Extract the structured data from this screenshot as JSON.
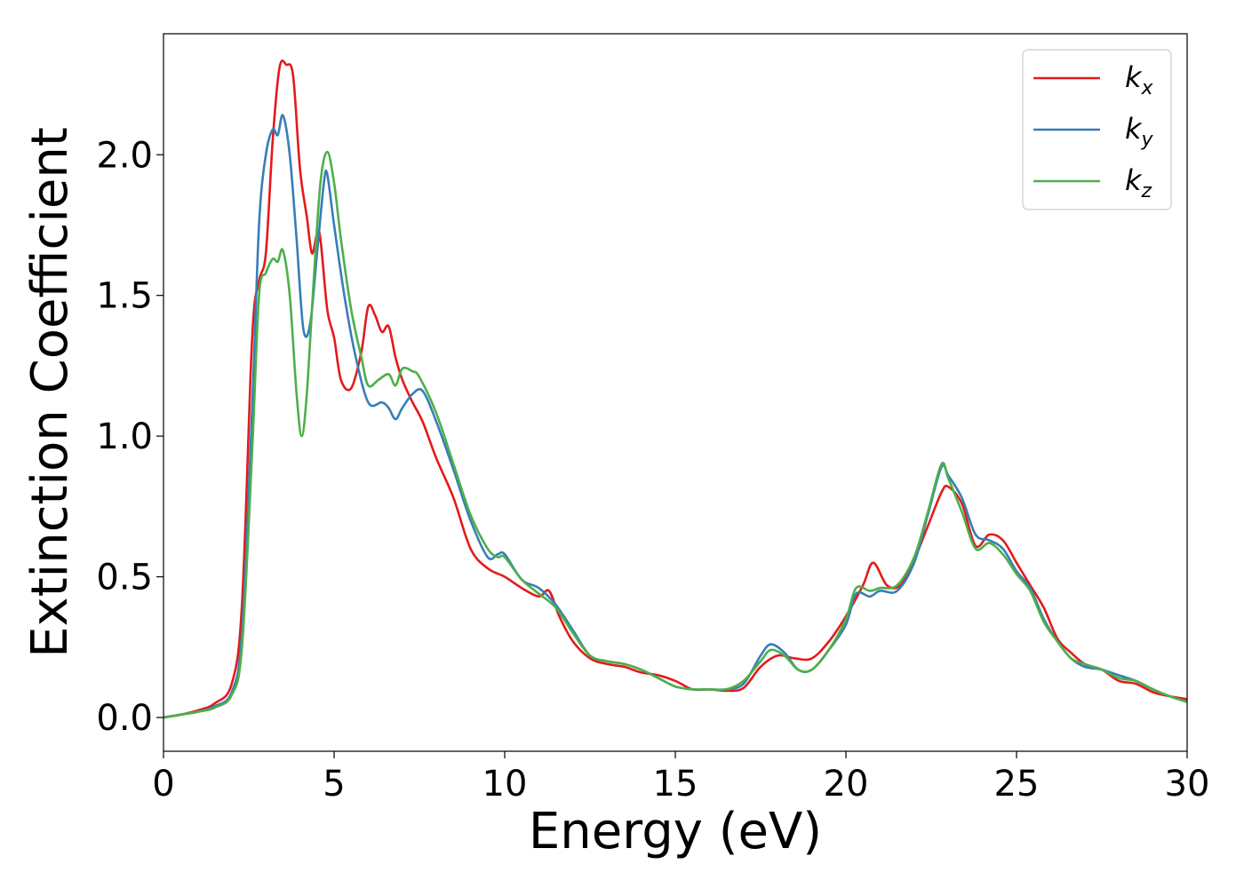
{
  "chart_data": {
    "type": "line",
    "xlabel": "Energy (eV)",
    "ylabel": "Extinction Coefficient",
    "xlim": [
      0,
      30
    ],
    "ylim": [
      -0.12,
      2.43
    ],
    "xticks": [
      0,
      5,
      10,
      15,
      20,
      25,
      30
    ],
    "xtick_labels": [
      "0",
      "5",
      "10",
      "15",
      "20",
      "25",
      "30"
    ],
    "yticks": [
      0.0,
      0.5,
      1.0,
      1.5,
      2.0
    ],
    "ytick_labels": [
      "0.0",
      "0.5",
      "1.0",
      "1.5",
      "2.0"
    ],
    "grid": false,
    "legend_position": "top-right",
    "series": [
      {
        "name": "k_x",
        "label_main": "k",
        "label_sub": "x",
        "color": "#e41a1c",
        "points": [
          [
            0,
            0
          ],
          [
            0.5,
            0.01
          ],
          [
            1,
            0.025
          ],
          [
            1.5,
            0.05
          ],
          [
            2,
            0.12
          ],
          [
            2.3,
            0.4
          ],
          [
            2.6,
            1.35
          ],
          [
            2.8,
            1.55
          ],
          [
            3.0,
            1.65
          ],
          [
            3.2,
            2.05
          ],
          [
            3.4,
            2.31
          ],
          [
            3.6,
            2.32
          ],
          [
            3.8,
            2.28
          ],
          [
            4.0,
            1.95
          ],
          [
            4.2,
            1.78
          ],
          [
            4.35,
            1.65
          ],
          [
            4.5,
            1.72
          ],
          [
            4.6,
            1.7
          ],
          [
            4.8,
            1.45
          ],
          [
            5.0,
            1.35
          ],
          [
            5.2,
            1.2
          ],
          [
            5.5,
            1.17
          ],
          [
            5.8,
            1.3
          ],
          [
            6.0,
            1.46
          ],
          [
            6.2,
            1.43
          ],
          [
            6.4,
            1.37
          ],
          [
            6.6,
            1.39
          ],
          [
            6.8,
            1.28
          ],
          [
            7.0,
            1.2
          ],
          [
            7.3,
            1.12
          ],
          [
            7.6,
            1.05
          ],
          [
            8.0,
            0.92
          ],
          [
            8.5,
            0.78
          ],
          [
            9.0,
            0.6
          ],
          [
            9.5,
            0.53
          ],
          [
            10,
            0.5
          ],
          [
            10.5,
            0.46
          ],
          [
            11.0,
            0.43
          ],
          [
            11.3,
            0.45
          ],
          [
            11.6,
            0.36
          ],
          [
            12.0,
            0.27
          ],
          [
            12.5,
            0.21
          ],
          [
            13,
            0.19
          ],
          [
            13.5,
            0.18
          ],
          [
            14,
            0.16
          ],
          [
            14.5,
            0.15
          ],
          [
            15,
            0.13
          ],
          [
            15.5,
            0.1
          ],
          [
            16,
            0.1
          ],
          [
            16.5,
            0.095
          ],
          [
            17,
            0.105
          ],
          [
            17.5,
            0.18
          ],
          [
            18,
            0.22
          ],
          [
            18.5,
            0.21
          ],
          [
            19,
            0.21
          ],
          [
            19.5,
            0.27
          ],
          [
            20,
            0.36
          ],
          [
            20.5,
            0.47
          ],
          [
            20.8,
            0.55
          ],
          [
            21.2,
            0.47
          ],
          [
            21.6,
            0.47
          ],
          [
            22,
            0.56
          ],
          [
            22.4,
            0.68
          ],
          [
            22.8,
            0.8
          ],
          [
            23.0,
            0.82
          ],
          [
            23.4,
            0.76
          ],
          [
            23.8,
            0.61
          ],
          [
            24.2,
            0.65
          ],
          [
            24.6,
            0.63
          ],
          [
            25,
            0.55
          ],
          [
            25.4,
            0.47
          ],
          [
            25.8,
            0.39
          ],
          [
            26.2,
            0.28
          ],
          [
            26.6,
            0.23
          ],
          [
            27,
            0.19
          ],
          [
            27.5,
            0.17
          ],
          [
            28,
            0.13
          ],
          [
            28.5,
            0.12
          ],
          [
            29,
            0.09
          ],
          [
            29.5,
            0.075
          ],
          [
            30,
            0.065
          ]
        ]
      },
      {
        "name": "k_y",
        "label_main": "k",
        "label_sub": "y",
        "color": "#377eb8",
        "points": [
          [
            0,
            0
          ],
          [
            0.5,
            0.01
          ],
          [
            1,
            0.02
          ],
          [
            1.5,
            0.04
          ],
          [
            2,
            0.09
          ],
          [
            2.3,
            0.3
          ],
          [
            2.6,
            1.1
          ],
          [
            2.8,
            1.75
          ],
          [
            3.0,
            2.0
          ],
          [
            3.2,
            2.09
          ],
          [
            3.35,
            2.07
          ],
          [
            3.5,
            2.14
          ],
          [
            3.7,
            2.0
          ],
          [
            3.9,
            1.7
          ],
          [
            4.1,
            1.38
          ],
          [
            4.3,
            1.4
          ],
          [
            4.5,
            1.65
          ],
          [
            4.7,
            1.9
          ],
          [
            4.8,
            1.93
          ],
          [
            5.0,
            1.75
          ],
          [
            5.3,
            1.5
          ],
          [
            5.6,
            1.3
          ],
          [
            6.0,
            1.12
          ],
          [
            6.4,
            1.12
          ],
          [
            6.6,
            1.1
          ],
          [
            6.8,
            1.06
          ],
          [
            7.0,
            1.1
          ],
          [
            7.3,
            1.15
          ],
          [
            7.6,
            1.16
          ],
          [
            8.0,
            1.05
          ],
          [
            8.5,
            0.88
          ],
          [
            9.0,
            0.7
          ],
          [
            9.5,
            0.57
          ],
          [
            9.8,
            0.58
          ],
          [
            10.0,
            0.58
          ],
          [
            10.5,
            0.49
          ],
          [
            11,
            0.46
          ],
          [
            11.5,
            0.4
          ],
          [
            12,
            0.31
          ],
          [
            12.5,
            0.22
          ],
          [
            13,
            0.2
          ],
          [
            13.5,
            0.19
          ],
          [
            14,
            0.17
          ],
          [
            14.5,
            0.14
          ],
          [
            15,
            0.11
          ],
          [
            15.5,
            0.1
          ],
          [
            16,
            0.1
          ],
          [
            16.5,
            0.1
          ],
          [
            17,
            0.12
          ],
          [
            17.5,
            0.22
          ],
          [
            17.8,
            0.26
          ],
          [
            18.2,
            0.23
          ],
          [
            18.6,
            0.17
          ],
          [
            19,
            0.17
          ],
          [
            19.5,
            0.24
          ],
          [
            20,
            0.33
          ],
          [
            20.3,
            0.44
          ],
          [
            20.7,
            0.43
          ],
          [
            21,
            0.45
          ],
          [
            21.5,
            0.45
          ],
          [
            22,
            0.55
          ],
          [
            22.4,
            0.72
          ],
          [
            22.8,
            0.89
          ],
          [
            23.0,
            0.86
          ],
          [
            23.4,
            0.78
          ],
          [
            23.8,
            0.65
          ],
          [
            24.2,
            0.63
          ],
          [
            24.6,
            0.6
          ],
          [
            25,
            0.52
          ],
          [
            25.4,
            0.46
          ],
          [
            25.8,
            0.35
          ],
          [
            26.2,
            0.27
          ],
          [
            26.6,
            0.21
          ],
          [
            27,
            0.18
          ],
          [
            27.5,
            0.17
          ],
          [
            28,
            0.15
          ],
          [
            28.5,
            0.13
          ],
          [
            29,
            0.1
          ],
          [
            29.5,
            0.075
          ],
          [
            30,
            0.055
          ]
        ]
      },
      {
        "name": "k_z",
        "label_main": "k",
        "label_sub": "z",
        "color": "#4daf4a",
        "points": [
          [
            0,
            0
          ],
          [
            0.5,
            0.01
          ],
          [
            1,
            0.02
          ],
          [
            1.5,
            0.035
          ],
          [
            2,
            0.08
          ],
          [
            2.3,
            0.25
          ],
          [
            2.6,
            0.95
          ],
          [
            2.8,
            1.5
          ],
          [
            3.0,
            1.58
          ],
          [
            3.2,
            1.63
          ],
          [
            3.35,
            1.62
          ],
          [
            3.5,
            1.66
          ],
          [
            3.7,
            1.5
          ],
          [
            3.9,
            1.15
          ],
          [
            4.05,
            1.0
          ],
          [
            4.2,
            1.15
          ],
          [
            4.4,
            1.55
          ],
          [
            4.6,
            1.9
          ],
          [
            4.8,
            2.01
          ],
          [
            5.0,
            1.9
          ],
          [
            5.2,
            1.7
          ],
          [
            5.5,
            1.45
          ],
          [
            5.8,
            1.28
          ],
          [
            6.0,
            1.18
          ],
          [
            6.3,
            1.2
          ],
          [
            6.6,
            1.22
          ],
          [
            6.8,
            1.18
          ],
          [
            7.0,
            1.24
          ],
          [
            7.3,
            1.23
          ],
          [
            7.5,
            1.21
          ],
          [
            8.0,
            1.08
          ],
          [
            8.5,
            0.9
          ],
          [
            9.0,
            0.72
          ],
          [
            9.5,
            0.6
          ],
          [
            9.8,
            0.57
          ],
          [
            10.0,
            0.57
          ],
          [
            10.5,
            0.49
          ],
          [
            11,
            0.44
          ],
          [
            11.5,
            0.39
          ],
          [
            12,
            0.3
          ],
          [
            12.5,
            0.22
          ],
          [
            13,
            0.2
          ],
          [
            13.5,
            0.19
          ],
          [
            14,
            0.17
          ],
          [
            14.5,
            0.14
          ],
          [
            15,
            0.11
          ],
          [
            15.5,
            0.1
          ],
          [
            16,
            0.1
          ],
          [
            16.5,
            0.1
          ],
          [
            17,
            0.13
          ],
          [
            17.5,
            0.2
          ],
          [
            17.8,
            0.24
          ],
          [
            18.2,
            0.22
          ],
          [
            18.6,
            0.17
          ],
          [
            19,
            0.17
          ],
          [
            19.5,
            0.24
          ],
          [
            20,
            0.35
          ],
          [
            20.3,
            0.46
          ],
          [
            20.7,
            0.45
          ],
          [
            21,
            0.46
          ],
          [
            21.5,
            0.47
          ],
          [
            22,
            0.57
          ],
          [
            22.4,
            0.73
          ],
          [
            22.8,
            0.9
          ],
          [
            23.0,
            0.85
          ],
          [
            23.4,
            0.73
          ],
          [
            23.8,
            0.6
          ],
          [
            24.2,
            0.62
          ],
          [
            24.6,
            0.58
          ],
          [
            25,
            0.51
          ],
          [
            25.4,
            0.45
          ],
          [
            25.8,
            0.34
          ],
          [
            26.2,
            0.27
          ],
          [
            26.6,
            0.21
          ],
          [
            27,
            0.19
          ],
          [
            27.5,
            0.17
          ],
          [
            28,
            0.14
          ],
          [
            28.5,
            0.13
          ],
          [
            29,
            0.1
          ],
          [
            29.5,
            0.075
          ],
          [
            30,
            0.055
          ]
        ]
      }
    ]
  }
}
